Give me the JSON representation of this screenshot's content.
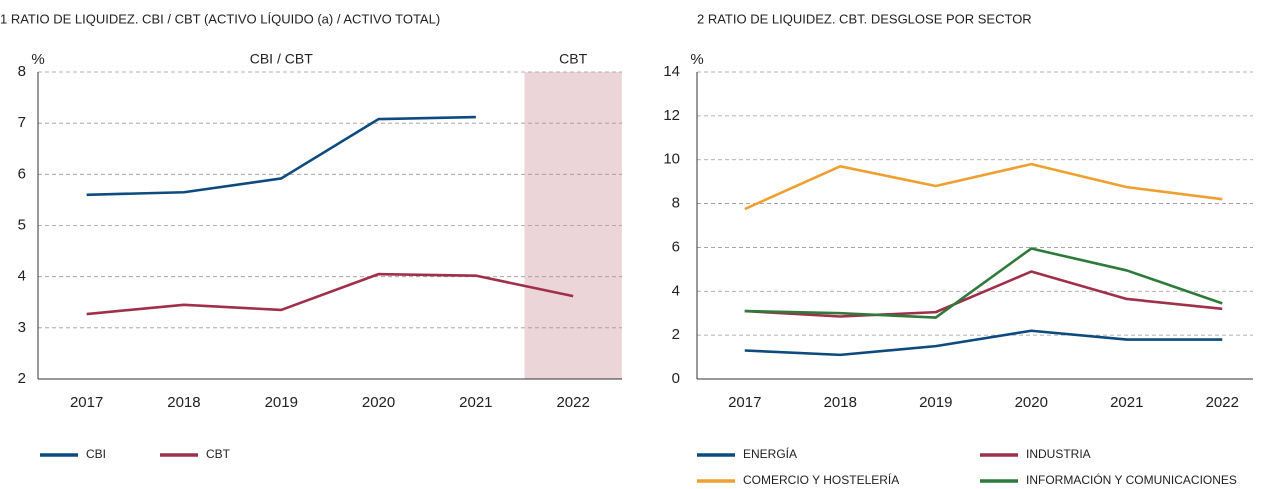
{
  "chart_data": [
    {
      "type": "line",
      "title": "1  RATIO DE LIQUIDEZ. CBI / CBT (ACTIVO LÍQUIDO (a) / ACTIVO TOTAL)",
      "y_label": "%",
      "annotations": [
        "CBI / CBT",
        "CBT"
      ],
      "highlight_category": "2022",
      "highlight_color": "#ecd5d9",
      "categories": [
        "2017",
        "2018",
        "2019",
        "2020",
        "2021",
        "2022"
      ],
      "series": [
        {
          "name": "CBI",
          "color": "#0d4a7f",
          "values": [
            5.6,
            5.65,
            5.92,
            7.08,
            7.12,
            null
          ]
        },
        {
          "name": "CBT",
          "color": "#a0304a",
          "values": [
            3.27,
            3.45,
            3.35,
            4.05,
            4.02,
            3.62
          ]
        }
      ],
      "ylim": [
        2,
        8
      ],
      "yticks": [
        2,
        3,
        4,
        5,
        6,
        7,
        8
      ],
      "grid": true
    },
    {
      "type": "line",
      "title": "2  RATIO DE LIQUIDEZ. CBT. DESGLOSE POR SECTOR",
      "y_label": "%",
      "categories": [
        "2017",
        "2018",
        "2019",
        "2020",
        "2021",
        "2022"
      ],
      "series": [
        {
          "name": "ENERGÍA",
          "color": "#0d4a7f",
          "values": [
            1.3,
            1.1,
            1.5,
            2.2,
            1.8,
            1.8
          ]
        },
        {
          "name": "INDUSTRIA",
          "color": "#a0304a",
          "values": [
            3.1,
            2.85,
            3.05,
            4.9,
            3.65,
            3.2
          ]
        },
        {
          "name": "COMERCIO Y HOSTELERÍA",
          "color": "#f0a030",
          "values": [
            7.75,
            9.7,
            8.8,
            9.8,
            8.75,
            8.2
          ]
        },
        {
          "name": "INFORMACIÓN Y COMUNICACIONES",
          "color": "#2e7a3a",
          "values": [
            3.1,
            3.0,
            2.8,
            5.95,
            4.95,
            3.45
          ]
        }
      ],
      "ylim": [
        0,
        14
      ],
      "yticks": [
        0,
        2,
        4,
        6,
        8,
        10,
        12,
        14
      ],
      "grid": true
    }
  ]
}
